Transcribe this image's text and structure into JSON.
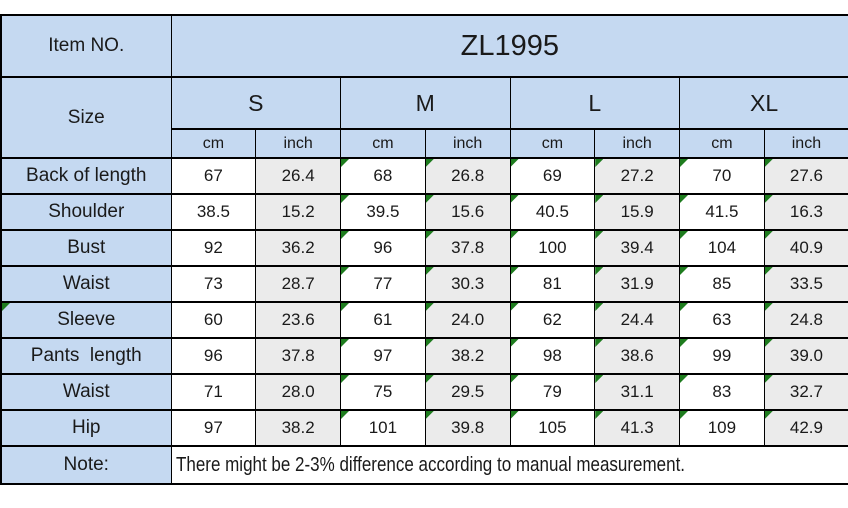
{
  "header": {
    "item_no_label": "Item NO.",
    "item_no_value": "ZL1995",
    "size_label": "Size",
    "note_label": "Note:"
  },
  "chart_data": {
    "type": "table",
    "title": "ZL1995",
    "size_groups": [
      "S",
      "M",
      "L",
      "XL"
    ],
    "unit_labels": [
      "cm",
      "inch"
    ],
    "columns": [
      "Size",
      "S cm",
      "S inch",
      "M cm",
      "M inch",
      "L cm",
      "L inch",
      "XL cm",
      "XL inch"
    ],
    "measurements": [
      {
        "label": "Back of length",
        "label_flagged": false,
        "values": [
          "67",
          "26.4",
          "68",
          "26.8",
          "69",
          "27.2",
          "70",
          "27.6"
        ]
      },
      {
        "label": "Shoulder",
        "label_flagged": false,
        "values": [
          "38.5",
          "15.2",
          "39.5",
          "15.6",
          "40.5",
          "15.9",
          "41.5",
          "16.3"
        ]
      },
      {
        "label": "Bust",
        "label_flagged": false,
        "values": [
          "92",
          "36.2",
          "96",
          "37.8",
          "100",
          "39.4",
          "104",
          "40.9"
        ]
      },
      {
        "label": "Waist",
        "label_flagged": false,
        "values": [
          "73",
          "28.7",
          "77",
          "30.3",
          "81",
          "31.9",
          "85",
          "33.5"
        ]
      },
      {
        "label": "Sleeve",
        "label_flagged": true,
        "values": [
          "60",
          "23.6",
          "61",
          "24.0",
          "62",
          "24.4",
          "63",
          "24.8"
        ]
      },
      {
        "label": "Pants  length",
        "label_flagged": false,
        "values": [
          "96",
          "37.8",
          "97",
          "38.2",
          "98",
          "38.6",
          "99",
          "39.0"
        ]
      },
      {
        "label": "Waist",
        "label_flagged": false,
        "values": [
          "71",
          "28.0",
          "75",
          "29.5",
          "79",
          "31.1",
          "83",
          "32.7"
        ]
      },
      {
        "label": "Hip",
        "label_flagged": false,
        "values": [
          "97",
          "38.2",
          "101",
          "39.8",
          "105",
          "41.3",
          "109",
          "42.9"
        ]
      }
    ],
    "flagged_value_columns": [
      2,
      3,
      4,
      5,
      6,
      7
    ],
    "note": "There might be 2-3% difference according to manual measurement."
  },
  "icons": {
    "corner_flag": "excel-error-corner-triangle"
  },
  "colors": {
    "header_blue": "#c5d9f1",
    "inch_gray": "#ebebeb",
    "flag_green": "#1e7c1e",
    "border_black": "#000000",
    "cell_white": "#ffffff"
  }
}
